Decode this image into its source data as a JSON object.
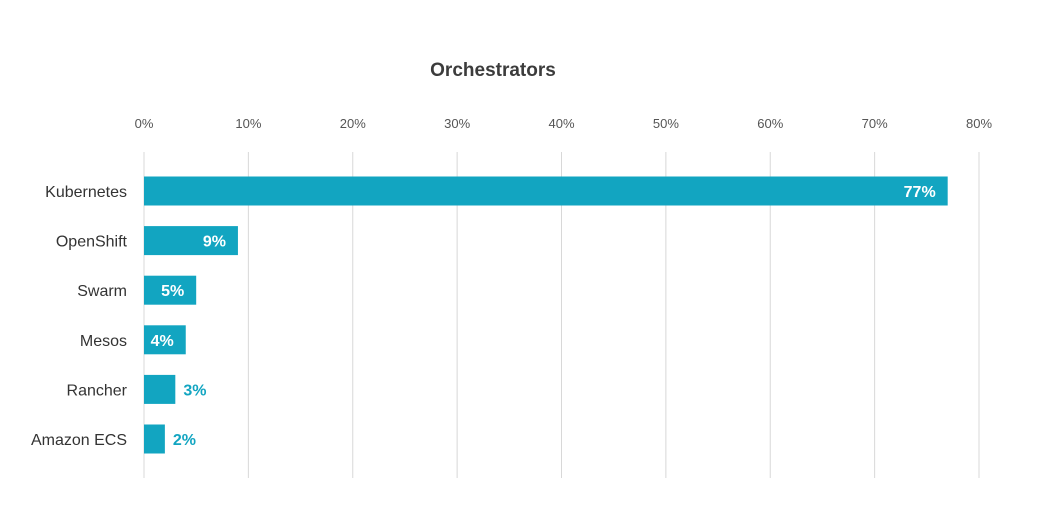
{
  "chart_data": {
    "type": "bar",
    "orientation": "horizontal",
    "title": "Orchestrators",
    "xlabel": "",
    "ylabel": "",
    "categories": [
      "Kubernetes",
      "OpenShift",
      "Swarm",
      "Mesos",
      "Rancher",
      "Amazon ECS"
    ],
    "values": [
      77,
      9,
      5,
      4,
      3,
      2
    ],
    "data_labels": [
      "77%",
      "9%",
      "5%",
      "4%",
      "3%",
      "2%"
    ],
    "xlim": [
      0,
      80
    ],
    "x_ticks": [
      0,
      10,
      20,
      30,
      40,
      50,
      60,
      70,
      80
    ],
    "x_tick_labels": [
      "0%",
      "10%",
      "20%",
      "30%",
      "40%",
      "50%",
      "60%",
      "70%",
      "80%"
    ],
    "axis_position": "top",
    "grid": true,
    "legend": "none",
    "colors": {
      "bar": "#12a5c1",
      "label_inside": "#ffffff",
      "label_outside": "#12a5c1",
      "grid": "#d8d8d8"
    }
  }
}
